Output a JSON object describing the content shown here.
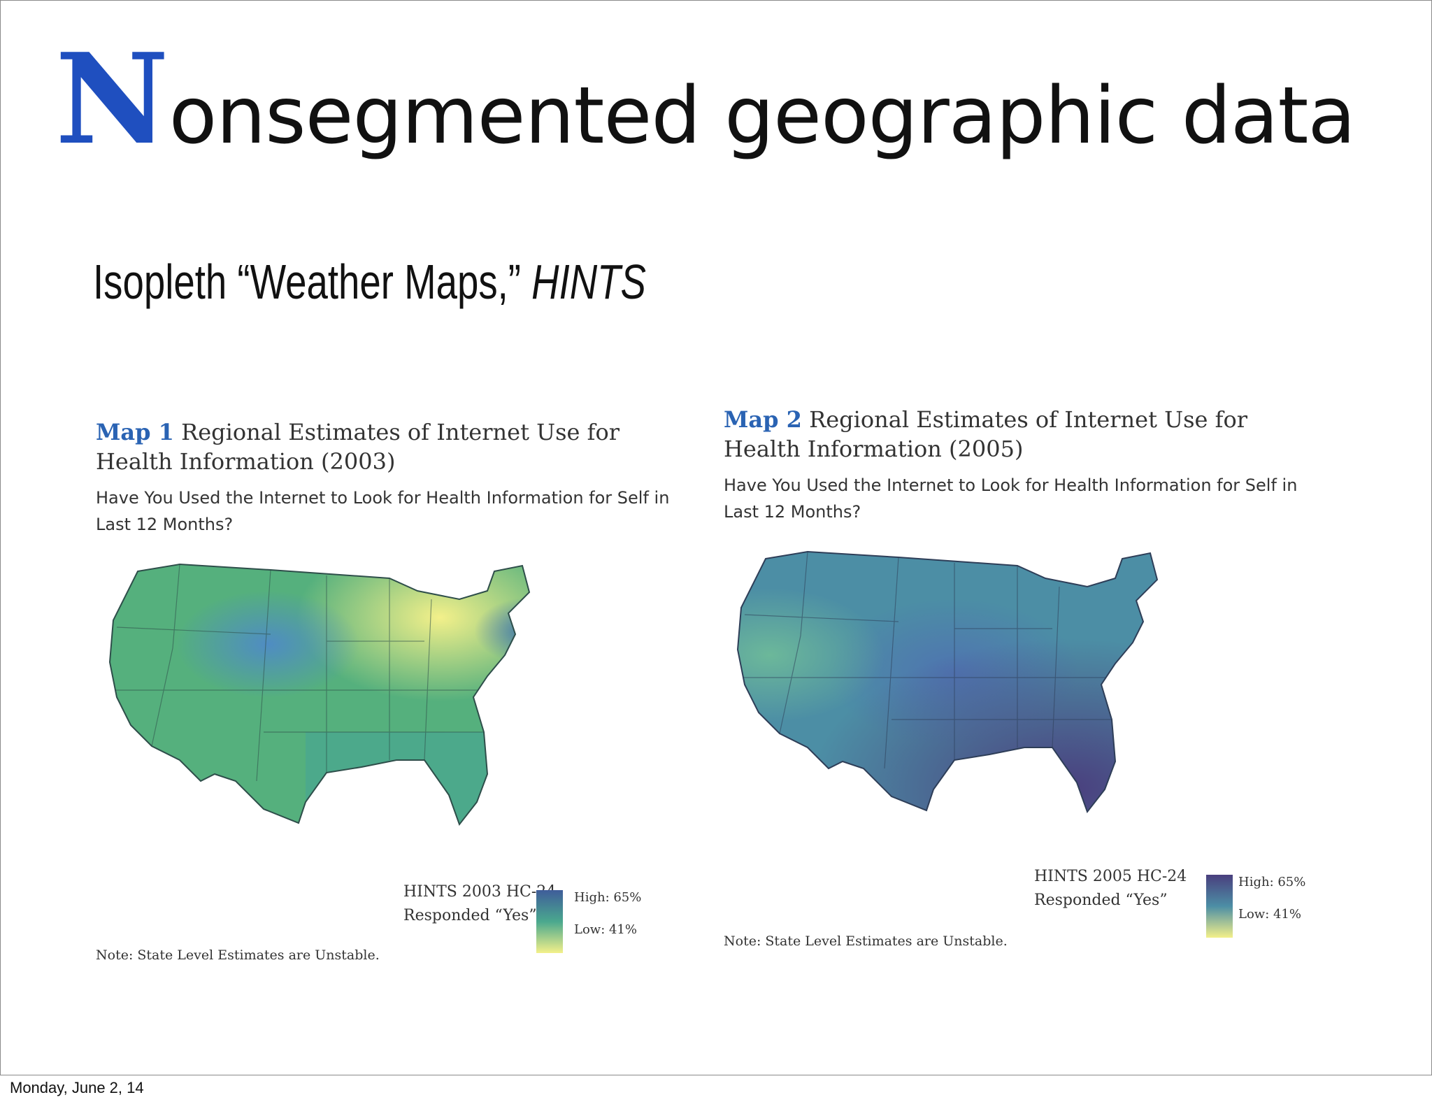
{
  "slide": {
    "title_initial": "N",
    "title_rest": "onsegmented geographic data",
    "subtitle_main": "Isopleth “Weather Maps,” ",
    "subtitle_italic": "HINTS",
    "footer_date": "Monday, June 2, 14"
  },
  "maps": [
    {
      "label_num": "Map 1",
      "title": "Regional Estimates of Internet Use for Health Information (2003)",
      "question": "Have You Used the Internet to Look for Health Information for Self in Last 12 Months?",
      "source_line1": "HINTS 2003 HC-24",
      "source_line2": "Responded “Yes”",
      "legend_high": "High: 65%",
      "legend_low": "Low: 41%",
      "note": "Note: State Level Estimates are Unstable.",
      "colors": {
        "high": "#3f5d9a",
        "mid": "#4aa88e",
        "low": "#f3f08a"
      }
    },
    {
      "label_num": "Map 2",
      "title": "Regional Estimates of Internet Use for Health Information (2005)",
      "question": "Have You Used the Internet to Look for Health Information for Self in Last 12 Months?",
      "source_line1": "HINTS 2005 HC-24",
      "source_line2": "Responded “Yes”",
      "legend_high": "High: 65%",
      "legend_low": "Low: 41%",
      "note": "Note: State Level Estimates are Unstable.",
      "colors": {
        "high": "#4a3f7e",
        "mid": "#4c8ea5",
        "low": "#f3f08a"
      }
    }
  ]
}
